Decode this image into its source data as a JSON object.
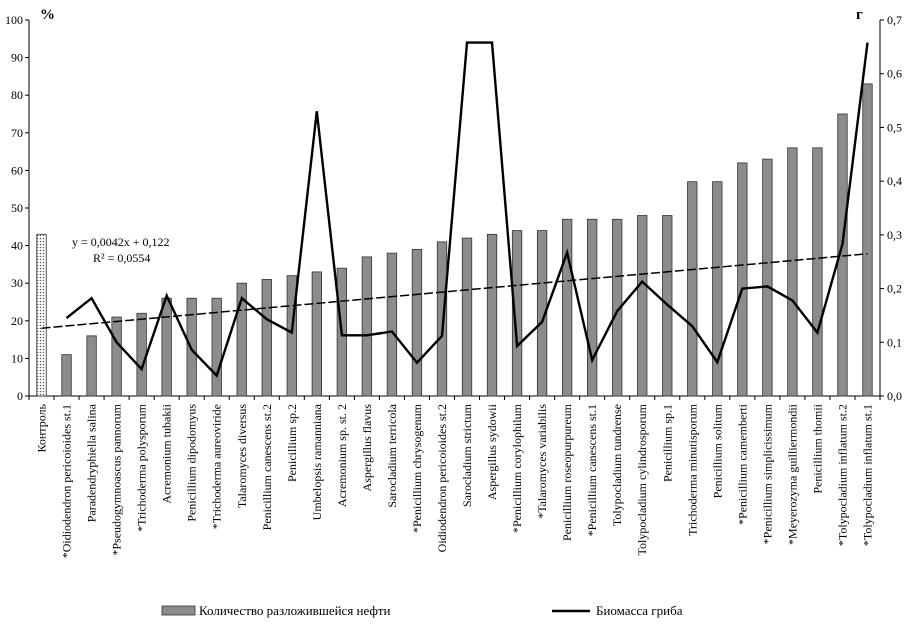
{
  "chart_data": {
    "type": "bar",
    "y_left_unit": "%",
    "y_right_unit": "г",
    "ylim": [
      0,
      100
    ],
    "y2lim": [
      0,
      0.7
    ],
    "y_ticks": [
      "0",
      "10",
      "20",
      "30",
      "40",
      "50",
      "60",
      "70",
      "80",
      "90",
      "100"
    ],
    "y2_ticks": [
      "0,0",
      "0,1",
      "0,2",
      "0,3",
      "0,4",
      "0,5",
      "0,6",
      "0,7"
    ],
    "categories": [
      "Контроль",
      "*Oidiodendron pericoioides st.1",
      "Paradendryphiella salina",
      "*Pseudogymnoascus pannorum",
      "*Trichoderma polysporum",
      "Acremonium tubakii",
      "Penicillium dipodomyus",
      "*Trichoderma aureoviride",
      "Talaromyces diversus",
      "Penicillium canescens st.2",
      "Penicillium sp.2",
      "Umbelopsis ramanniana",
      "Acremonium sp. st. 2",
      "Aspergillus flavus",
      "Sarocladium terricola",
      "*Penicillium chrysogenum",
      "Oidiodendron pericoioides st.2",
      "Sarocladium strictum",
      "Aspergillus sydowii",
      "*Penicillium corylophilum",
      "*Talaromyces variabilis",
      "Penicillium roseopurpureum",
      "*Penicillium canescens st.1",
      "Tolypocladium tundrense",
      "Tolypocladium cylindrosporum",
      "Penicillium sp.1",
      "Trichoderma minutisporum",
      "Penicillium solitum",
      "*Penicillium camemberti",
      "*Penicillium  simplicissimum",
      "*Meyerozyma guilliermondii",
      "Penicillium thomii",
      "*Tolypocladium inflatum st.2",
      "*Tolypocladium inflatum st.1"
    ],
    "series": [
      {
        "name": "Количество разложившейся нефти",
        "type": "bar",
        "axis": "left",
        "values": [
          43,
          11,
          16,
          21,
          22,
          26,
          26,
          26,
          30,
          31,
          32,
          33,
          34,
          37,
          38,
          39,
          41,
          42,
          43,
          44,
          44,
          47,
          47,
          47,
          48,
          48,
          57,
          57,
          62,
          63,
          66,
          66,
          75,
          83
        ]
      },
      {
        "name": "Биомасса гриба",
        "type": "line",
        "axis": "right",
        "values": [
          null,
          0.145,
          0.182,
          0.1,
          0.05,
          0.187,
          0.086,
          0.038,
          0.182,
          0.143,
          0.118,
          0.53,
          0.113,
          0.113,
          0.12,
          0.062,
          0.112,
          0.658,
          0.658,
          0.093,
          0.138,
          0.267,
          0.067,
          0.158,
          0.213,
          0.17,
          0.13,
          0.063,
          0.2,
          0.204,
          0.178,
          0.118,
          0.283,
          0.658
        ]
      }
    ],
    "trendline": {
      "equation": "y = 0,0042x + 0,122",
      "r2": "R² = 0,0554",
      "slope": 0.0042,
      "intercept": 0.122,
      "axis": "right"
    },
    "legend": {
      "position": "bottom",
      "items": [
        "Количество разложившейся нефти",
        "Биомасса гриба"
      ]
    }
  }
}
